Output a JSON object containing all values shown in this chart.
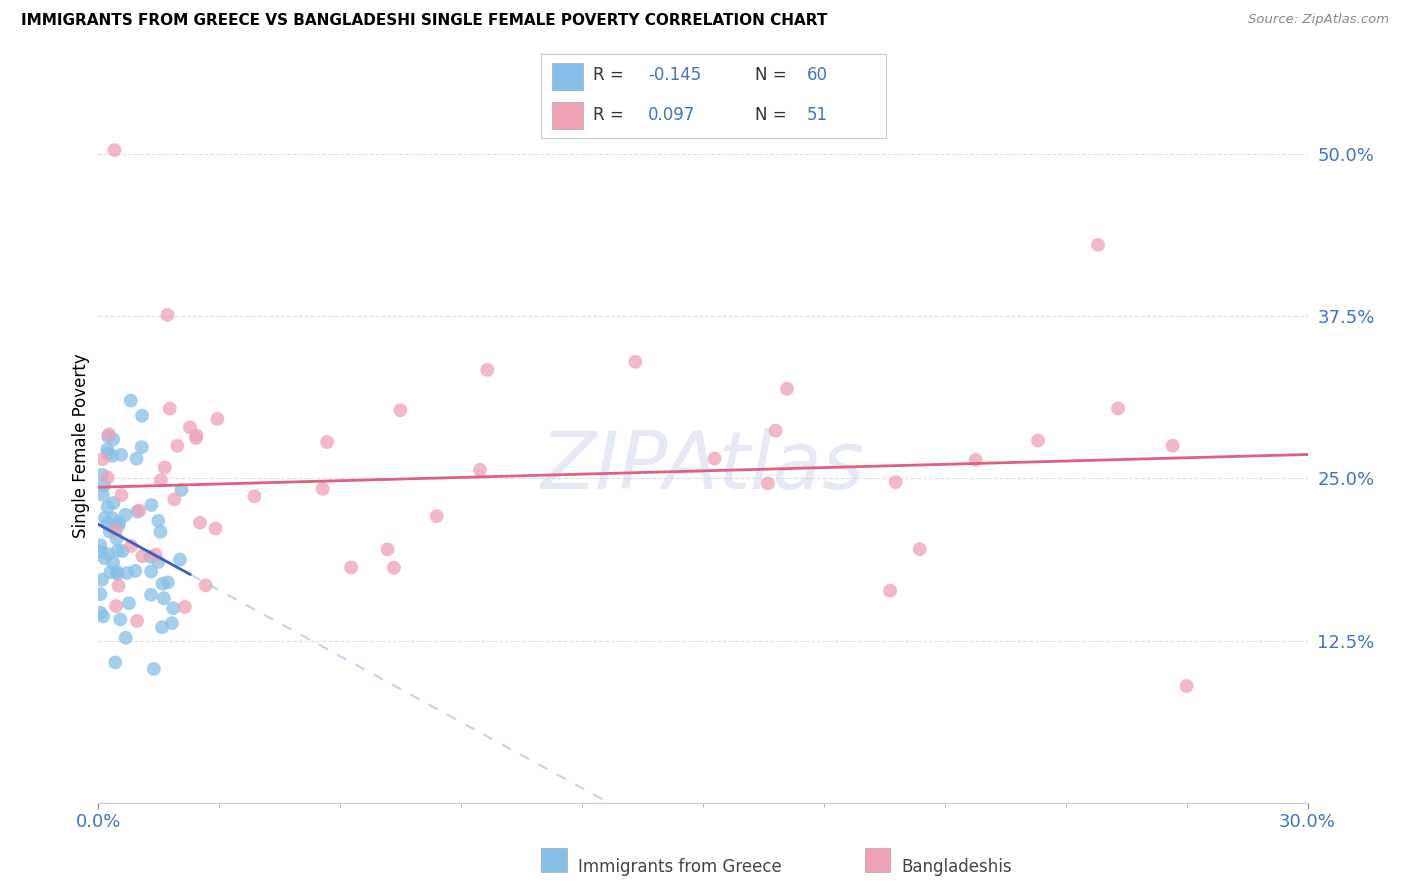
{
  "title": "IMMIGRANTS FROM GREECE VS BANGLADESHI SINGLE FEMALE POVERTY CORRELATION CHART",
  "source": "Source: ZipAtlas.com",
  "ylabel": "Single Female Poverty",
  "yticks": [
    0.125,
    0.25,
    0.375,
    0.5
  ],
  "ytick_labels": [
    "12.5%",
    "25.0%",
    "37.5%",
    "50.0%"
  ],
  "xtick_left_label": "0.0%",
  "xtick_right_label": "30.0%",
  "legend_greece_label": "Immigrants from Greece",
  "legend_bangladesh_label": "Bangladeshis",
  "color_greece": "#85C0E8",
  "color_bangladesh": "#F0A0B5",
  "color_greece_line": "#3A60B8",
  "color_bangladesh_line": "#E06080",
  "color_greece_dashed": "#A8C8E8",
  "color_legend_r": "#4472C4",
  "color_tick": "#4472C4",
  "xlim": [
    0.0,
    0.3
  ],
  "ylim": [
    0.0,
    0.55
  ],
  "background": "#FFFFFF",
  "grid_color": "#DDDDDD",
  "watermark": "ZIPAtlas",
  "watermark_color": "#D0D8F0"
}
